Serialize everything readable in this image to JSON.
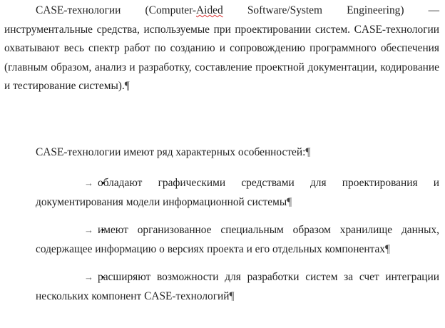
{
  "document": {
    "para1": {
      "lead": "CASE-технологии (Computer-",
      "underlined": "Aided",
      "tail": " Software/System Engineering) — инструментальные средства, используемые при проектировании систем. CASE-технологии охватывают весь спектр работ по созданию и сопровождению программного обеспечения (главным образом, анализ и разработку, составление проектной документации, кодирование и тестирование системы).",
      "end_mark": "¶"
    },
    "para2": {
      "text": "CASE-технологии имеют ряд характерных особенностей:",
      "end_mark": "¶"
    },
    "list": {
      "bullet_glyph": "•",
      "tab_glyph": "→",
      "items": [
        {
          "text": "обладают графическими средствами для проектирования и документирования модели информационной системы",
          "end_mark": "¶"
        },
        {
          "text": "имеют организованное специальным образом хранилище данных, содержащее информацию о версиях проекта и его отдельных компонентах",
          "end_mark": "¶"
        },
        {
          "text": "расширяют возможности для разработки систем за счет интеграции нескольких компонент CASE-технологий",
          "end_mark": "¶"
        }
      ]
    }
  }
}
